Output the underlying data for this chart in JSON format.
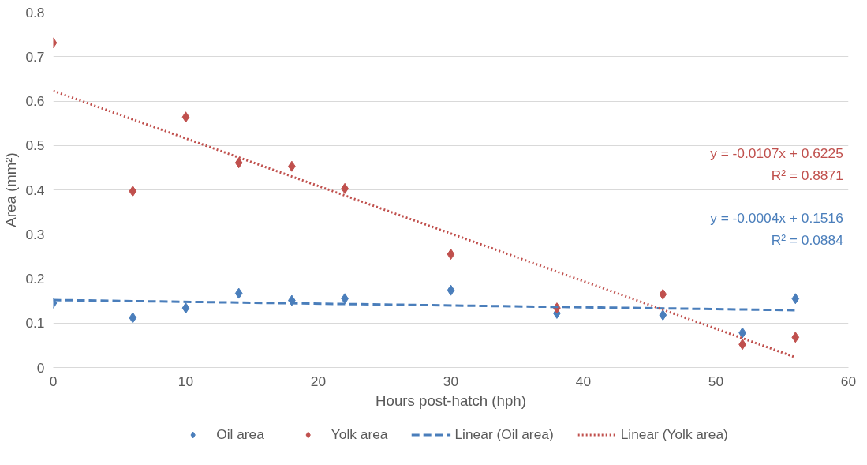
{
  "chart_data": {
    "type": "scatter",
    "xlabel": "Hours post-hatch (hph)",
    "ylabel": "Area (mm²)",
    "xlim": [
      0,
      60
    ],
    "xticks": [
      0,
      10,
      20,
      30,
      40,
      50,
      60
    ],
    "ylim": [
      0,
      0.8
    ],
    "yticks": [
      0,
      0.1,
      0.2,
      0.3,
      0.4,
      0.5,
      0.6,
      0.7,
      0.8
    ],
    "grid": "y",
    "legend": "bottom",
    "series": [
      {
        "name": "Oil area",
        "marker": "diamond",
        "color": "#4a7ebb",
        "x": [
          0,
          6,
          10,
          14,
          18,
          22,
          30,
          38,
          46,
          52,
          56
        ],
        "values": [
          0.145,
          0.112,
          0.134,
          0.167,
          0.151,
          0.155,
          0.174,
          0.122,
          0.118,
          0.078,
          0.155
        ]
      },
      {
        "name": "Yolk area",
        "marker": "diamond",
        "color": "#c0504d",
        "x": [
          0,
          6,
          10,
          14,
          18,
          22,
          30,
          38,
          46,
          52,
          56
        ],
        "values": [
          0.731,
          0.397,
          0.564,
          0.461,
          0.453,
          0.403,
          0.255,
          0.134,
          0.165,
          0.052,
          0.068
        ]
      },
      {
        "name": "Linear (Oil area)",
        "type": "line",
        "marker": "none",
        "line_style": "dashed",
        "color": "#4a7ebb",
        "x": [
          0,
          56
        ],
        "values": [
          0.152,
          0.129
        ]
      },
      {
        "name": "Linear (Yolk area)",
        "type": "line",
        "marker": "none",
        "line_style": "dotted",
        "color": "#c0504d",
        "x": [
          0,
          56
        ],
        "values": [
          0.623,
          0.023
        ]
      }
    ],
    "annotations": [
      "y = -0.0107x + 0.6225",
      "R² = 0.8871",
      "y = -0.0004x + 0.1516",
      "R² = 0.0884"
    ]
  }
}
